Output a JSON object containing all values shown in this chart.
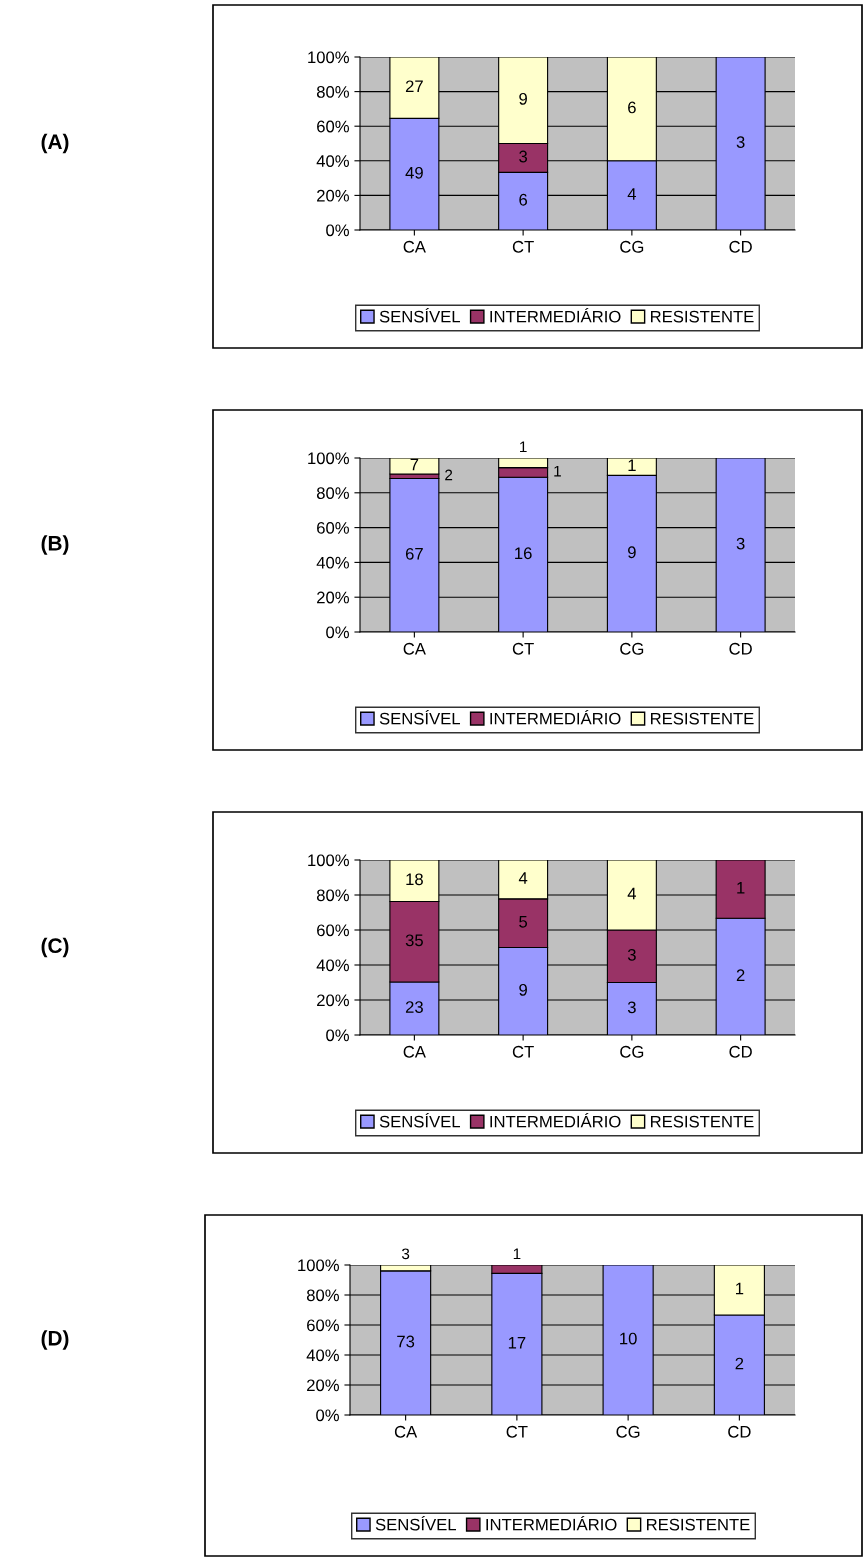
{
  "chart_data": [
    {
      "type": "bar",
      "stacked": true,
      "categories": [
        "CA",
        "CT",
        "CG",
        "CD"
      ],
      "ylim": [
        0,
        100
      ],
      "yticks": [
        {
          "value": 0,
          "label": "0%"
        },
        {
          "value": 20,
          "label": "20%"
        },
        {
          "value": 40,
          "label": "40%"
        },
        {
          "value": 60,
          "label": "60%"
        },
        {
          "value": 80,
          "label": "80%"
        },
        {
          "value": 100,
          "label": "100%"
        }
      ],
      "grid": "y",
      "legend": "bottom",
      "series": [
        {
          "name": "SENSÍVEL",
          "color": "#9999ff",
          "values": [
            64.5,
            33.3,
            40,
            100
          ]
        },
        {
          "name": "INTERMEDIÁRIO",
          "color": "#993366",
          "values": [
            null,
            16.7,
            null,
            null
          ]
        },
        {
          "name": "RESISTENTE",
          "color": "#ffffcc",
          "values": [
            35.5,
            50,
            60,
            null
          ]
        }
      ],
      "annotations": [
        "(A)",
        "49",
        "6",
        "4",
        "3",
        "3",
        "27",
        "9",
        "6"
      ]
    },
    {
      "type": "bar",
      "stacked": true,
      "categories": [
        "CA",
        "CT",
        "CG",
        "CD"
      ],
      "ylim": [
        0,
        100
      ],
      "yticks": [
        {
          "value": 0,
          "label": "0%"
        },
        {
          "value": 20,
          "label": "20%"
        },
        {
          "value": 40,
          "label": "40%"
        },
        {
          "value": 60,
          "label": "60%"
        },
        {
          "value": 80,
          "label": "80%"
        },
        {
          "value": 100,
          "label": "100%"
        }
      ],
      "grid": "y",
      "legend": "bottom",
      "series": [
        {
          "name": "SENSÍVEL",
          "color": "#9999ff",
          "values": [
            88.2,
            88.9,
            90,
            100
          ]
        },
        {
          "name": "INTERMEDIÁRIO",
          "color": "#993366",
          "values": [
            2.6,
            5.6,
            null,
            null
          ]
        },
        {
          "name": "RESISTENTE",
          "color": "#ffffcc",
          "values": [
            9.2,
            5.5,
            10,
            null
          ]
        }
      ],
      "annotations": [
        "(B)",
        "67",
        "16",
        "9",
        "3",
        "2",
        "1",
        "7",
        "1",
        "1"
      ]
    },
    {
      "type": "bar",
      "stacked": true,
      "categories": [
        "CA",
        "CT",
        "CG",
        "CD"
      ],
      "ylim": [
        0,
        100
      ],
      "yticks": [
        {
          "value": 0,
          "label": "0%"
        },
        {
          "value": 20,
          "label": "20%"
        },
        {
          "value": 40,
          "label": "40%"
        },
        {
          "value": 60,
          "label": "60%"
        },
        {
          "value": 80,
          "label": "80%"
        },
        {
          "value": 100,
          "label": "100%"
        }
      ],
      "grid": "y",
      "legend": "bottom",
      "series": [
        {
          "name": "SENSÍVEL",
          "color": "#9999ff",
          "values": [
            30.3,
            50,
            30,
            66.7
          ]
        },
        {
          "name": "INTERMEDIÁRIO",
          "color": "#993366",
          "values": [
            46.0,
            27.8,
            30,
            33.3
          ]
        },
        {
          "name": "RESISTENTE",
          "color": "#ffffcc",
          "values": [
            23.7,
            22.2,
            40,
            null
          ]
        }
      ],
      "annotations": [
        "(C)",
        "23",
        "9",
        "3",
        "2",
        "35",
        "5",
        "3",
        "1",
        "18",
        "4",
        "4"
      ]
    },
    {
      "type": "bar",
      "stacked": true,
      "categories": [
        "CA",
        "CT",
        "CG",
        "CD"
      ],
      "ylim": [
        0,
        100
      ],
      "yticks": [
        {
          "value": 0,
          "label": "0%"
        },
        {
          "value": 20,
          "label": "20%"
        },
        {
          "value": 40,
          "label": "40%"
        },
        {
          "value": 60,
          "label": "60%"
        },
        {
          "value": 80,
          "label": "80%"
        },
        {
          "value": 100,
          "label": "100%"
        }
      ],
      "grid": "y",
      "legend": "bottom",
      "series": [
        {
          "name": "SENSÍVEL",
          "color": "#9999ff",
          "values": [
            96.1,
            94.4,
            100,
            66.7
          ]
        },
        {
          "name": "INTERMEDIÁRIO",
          "color": "#993366",
          "values": [
            null,
            5.6,
            null,
            null
          ]
        },
        {
          "name": "RESISTENTE",
          "color": "#ffffcc",
          "values": [
            3.9,
            null,
            null,
            33.3
          ]
        }
      ],
      "annotations": [
        "(D)",
        "73",
        "17",
        "10",
        "2",
        "1",
        "3",
        "1"
      ]
    }
  ]
}
